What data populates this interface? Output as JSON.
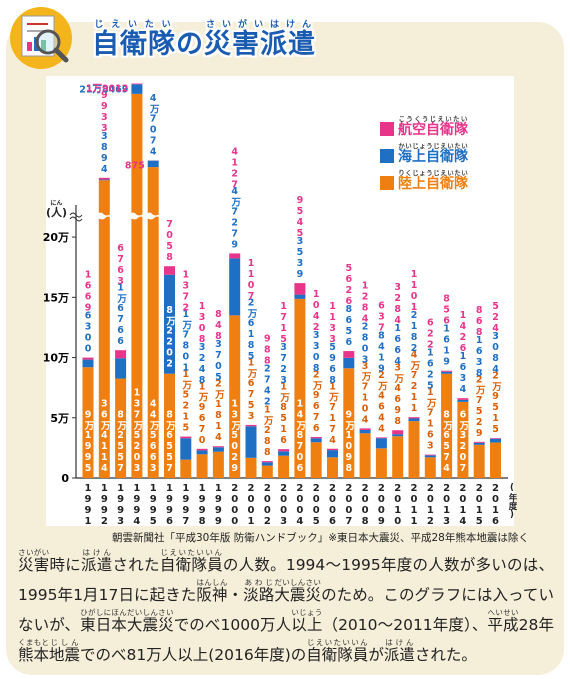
{
  "header": {
    "title": [
      {
        "base": "自衛隊",
        "ruby": "じえいたい"
      },
      "の",
      {
        "base": "災害派遣",
        "ruby": "さいがいはけん"
      }
    ]
  },
  "chart_data": {
    "type": "bar",
    "stacked": true,
    "axis_break": true,
    "y_label": [
      "(",
      {
        "base": "人",
        "ruby": "にん"
      },
      ")"
    ],
    "x_label": "(年度)",
    "categories": [
      "1991",
      "1992",
      "1993",
      "1994",
      "1995",
      "1996",
      "1997",
      "1998",
      "1999",
      "2000",
      "2001",
      "2002",
      "2003",
      "2004",
      "2005",
      "2006",
      "2007",
      "2008",
      "2009",
      "2010",
      "2011",
      "2012",
      "2013",
      "2014",
      "2015",
      "2016"
    ],
    "series": [
      {
        "name": "陸上自衛隊",
        "ruby": "りくじょうじえいたい",
        "color": "#f07f12",
        "values": [
          91995,
          364114,
          82557,
          1375203,
          445663,
          86557,
          15215,
          19670,
          21814,
          135029,
          16753,
          10288,
          18516,
          148706,
          29676,
          17174,
          91098,
          37104,
          24644,
          34698,
          47211,
          17163,
          86574,
          63207,
          27529,
          29515
        ],
        "value_labels": [
          "9万1995",
          "36万4114",
          "8万2557",
          "137万5203",
          "44万5663",
          "8万6557",
          "1万5215",
          "1万9670",
          "2万1814",
          "13万5029",
          "1万6753",
          "1万288",
          "1万8516",
          "14万8706",
          "2万9676",
          "1万7174",
          "9万1098",
          "3万7104",
          "2万4644",
          "3万4698",
          "4万7211",
          "1万7163",
          "8万6574",
          "6万3207",
          "2万7529",
          "2万9515"
        ]
      },
      {
        "name": "海上自衛隊",
        "ruby": "かいじょうじえいたい",
        "color": "#1f6fc4",
        "values": [
          6300,
          3894,
          16766,
          218469,
          47074,
          82202,
          17801,
          3248,
          3705,
          47279,
          26185,
          2742,
          3723,
          3539,
          3308,
          5968,
          8656,
          2803,
          8419,
          1664,
          2182,
          1625,
          1619,
          1634,
          1638,
          3084
        ],
        "value_labels": [
          "6300",
          "3894",
          "1万6766",
          "21万8469",
          "4万7074",
          "8万2202",
          "1万7801",
          "3248",
          "3705",
          "4万7279",
          "2万6185",
          "2742",
          "3723",
          "3539",
          "3308",
          "5968",
          "8656",
          "2803",
          "8419",
          "1664",
          "2182",
          "1625",
          "1619",
          "1634",
          "1638",
          "3084"
        ]
      },
      {
        "name": "航空自衛隊",
        "ruby": "こうくうじえいたい",
        "color": "#e8358a",
        "values": [
          1669,
          9933,
          6763,
          19012,
          875,
          7058,
          1372,
          1308,
          848,
          4127,
          1107,
          988,
          1715,
          9545,
          1042,
          1133,
          5626,
          1284,
          637,
          3284,
          1101,
          622,
          856,
          1426,
          868,
          524
        ],
        "value_labels": [
          "1669",
          "9933",
          "6763",
          "1万9012",
          "875",
          "7058",
          "1372",
          "1308",
          "848",
          "4127",
          "1107",
          "988",
          "1715",
          "9545",
          "1042",
          "1133",
          "5626",
          "1284",
          "637",
          "3284",
          "1101",
          "622",
          "856",
          "1426",
          "868",
          "524"
        ]
      }
    ],
    "ylim": [
      0,
      220000
    ],
    "yticks": [
      0,
      {
        "value": 50000,
        "label": "5万"
      },
      {
        "value": 100000,
        "label": "10万"
      },
      {
        "value": 150000,
        "label": "15万"
      },
      {
        "value": 200000,
        "label": "20万"
      }
    ],
    "legend": "upper right",
    "source": "朝雲新聞社「平成30年版 防衛ハンドブック」※東日本大震災、平成28年熊本地震は除く"
  },
  "caption": [
    {
      "base": "災害",
      "ruby": "さいがい"
    },
    "時に",
    {
      "base": "派遣",
      "ruby": "はけん"
    },
    "された",
    {
      "base": "自衛隊員",
      "ruby": "じえいたいいん"
    },
    "の人数。1994～1995年度の人数が多いのは、1995年1月17日に起きた",
    {
      "base": "阪神",
      "ruby": "はんしん"
    },
    "・",
    {
      "base": "淡路",
      "ruby": "あわじ"
    },
    {
      "base": "大震災",
      "ruby": "だいしんさい"
    },
    "のため。このグラフには入っていないが、",
    {
      "base": "東日本大震災",
      "ruby": "ひがしにほんだいしんさい"
    },
    "でのべ1000万人",
    {
      "base": "以上",
      "ruby": "いじょう"
    },
    "（2010～2011年度）、",
    {
      "base": "平成",
      "ruby": "へいせい"
    },
    "28年",
    {
      "base": "熊本",
      "ruby": "くまもと"
    },
    {
      "base": "地震",
      "ruby": "じしん"
    },
    "でのべ81万人以上(2016年度)の",
    {
      "base": "自衛隊員",
      "ruby": "じえいたいいん"
    },
    "が",
    {
      "base": "派遣",
      "ruby": "はけん"
    },
    "された。"
  ]
}
